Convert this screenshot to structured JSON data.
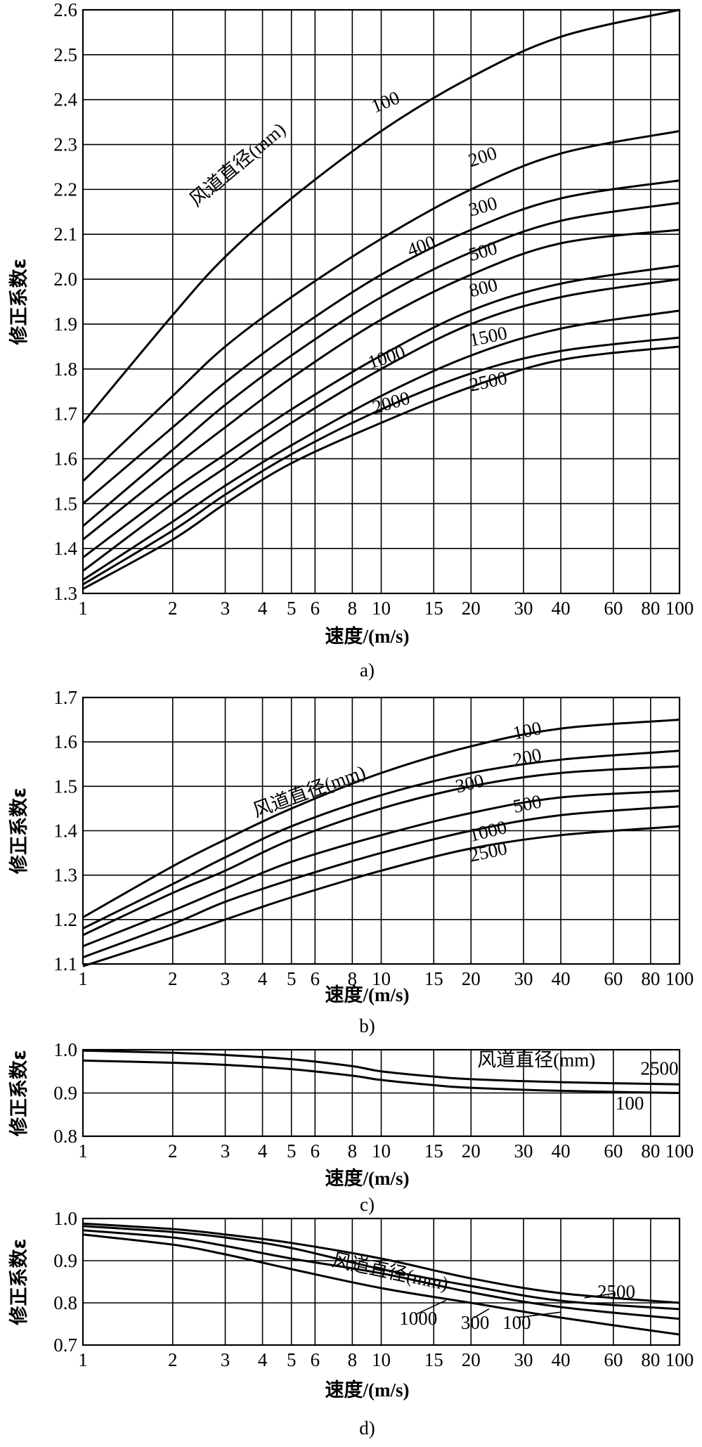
{
  "chart_data": [
    {
      "id": "a",
      "type": "line",
      "caption": "a)",
      "xlabel": "速度/(m/s)",
      "ylabel": "修正系数ε",
      "x_scale": "log",
      "xlim": [
        1,
        100
      ],
      "ylim": [
        1.3,
        2.6
      ],
      "x_ticks": [
        1,
        2,
        3,
        4,
        5,
        6,
        8,
        10,
        15,
        20,
        30,
        40,
        60,
        80,
        100
      ],
      "x_tick_labels": [
        "1",
        "2",
        "3",
        "4",
        "5",
        "6",
        "8",
        "10",
        "15",
        "20",
        "30",
        "40",
        "60",
        "80",
        "100"
      ],
      "y_ticks": [
        1.3,
        1.4,
        1.5,
        1.6,
        1.7,
        1.8,
        1.9,
        2.0,
        2.1,
        2.2,
        2.3,
        2.4,
        2.5,
        2.6
      ],
      "y_tick_labels": [
        "1.3",
        "1.4",
        "1.5",
        "1.6",
        "1.7",
        "1.8",
        "1.9",
        "2.0",
        "2.1",
        "2.2",
        "2.3",
        "2.4",
        "2.5",
        "2.6"
      ],
      "legend_title": "风道直径(mm)",
      "grid": true,
      "series": [
        {
          "name": "100",
          "x": [
            1,
            2,
            3,
            5,
            10,
            20,
            40,
            100
          ],
          "y": [
            1.68,
            1.92,
            2.05,
            2.18,
            2.33,
            2.45,
            2.54,
            2.6
          ]
        },
        {
          "name": "200",
          "x": [
            1,
            2,
            3,
            5,
            10,
            20,
            40,
            100
          ],
          "y": [
            1.55,
            1.74,
            1.85,
            1.96,
            2.09,
            2.2,
            2.28,
            2.33
          ]
        },
        {
          "name": "300",
          "x": [
            1,
            2,
            3,
            5,
            10,
            20,
            40,
            100
          ],
          "y": [
            1.5,
            1.67,
            1.77,
            1.88,
            2.01,
            2.11,
            2.18,
            2.22
          ]
        },
        {
          "name": "400",
          "x": [
            1,
            2,
            3,
            5,
            10,
            20,
            40,
            100
          ],
          "y": [
            1.45,
            1.62,
            1.72,
            1.83,
            1.96,
            2.06,
            2.13,
            2.17
          ]
        },
        {
          "name": "500",
          "x": [
            1,
            2,
            3,
            5,
            10,
            20,
            40,
            100
          ],
          "y": [
            1.42,
            1.58,
            1.67,
            1.78,
            1.91,
            2.01,
            2.08,
            2.11
          ]
        },
        {
          "name": "800",
          "x": [
            1,
            2,
            3,
            5,
            10,
            20,
            40,
            100
          ],
          "y": [
            1.38,
            1.53,
            1.61,
            1.71,
            1.83,
            1.93,
            1.99,
            2.03
          ]
        },
        {
          "name": "1000",
          "x": [
            1,
            2,
            3,
            5,
            10,
            20,
            40,
            100
          ],
          "y": [
            1.35,
            1.5,
            1.58,
            1.68,
            1.8,
            1.9,
            1.96,
            2.0
          ]
        },
        {
          "name": "1500",
          "x": [
            1,
            2,
            3,
            5,
            10,
            20,
            40,
            100
          ],
          "y": [
            1.33,
            1.46,
            1.54,
            1.63,
            1.74,
            1.83,
            1.89,
            1.93
          ]
        },
        {
          "name": "2000",
          "x": [
            1,
            2,
            3,
            5,
            10,
            20,
            40,
            100
          ],
          "y": [
            1.32,
            1.44,
            1.52,
            1.61,
            1.71,
            1.79,
            1.84,
            1.87
          ]
        },
        {
          "name": "2500",
          "x": [
            1,
            2,
            3,
            5,
            10,
            20,
            40,
            100
          ],
          "y": [
            1.31,
            1.42,
            1.5,
            1.59,
            1.68,
            1.76,
            1.82,
            1.85
          ]
        }
      ],
      "curve_labels": [
        {
          "text": "100",
          "x": 9.5,
          "y": 2.37,
          "angle": -22
        },
        {
          "text": "200",
          "x": 20,
          "y": 2.25,
          "angle": -18
        },
        {
          "text": "300",
          "x": 20,
          "y": 2.14,
          "angle": -16
        },
        {
          "text": "400",
          "x": 12.5,
          "y": 2.05,
          "angle": -20
        },
        {
          "text": "500",
          "x": 20,
          "y": 2.04,
          "angle": -16
        },
        {
          "text": "800",
          "x": 20,
          "y": 1.96,
          "angle": -14
        },
        {
          "text": "1000",
          "x": 9.2,
          "y": 1.8,
          "angle": -18
        },
        {
          "text": "1500",
          "x": 20,
          "y": 1.85,
          "angle": -12
        },
        {
          "text": "2000",
          "x": 9.5,
          "y": 1.7,
          "angle": -16
        },
        {
          "text": "2500",
          "x": 20,
          "y": 1.75,
          "angle": -12
        }
      ],
      "legend_pos": {
        "x": 2.4,
        "y": 2.16,
        "angle": -40
      }
    },
    {
      "id": "b",
      "type": "line",
      "caption": "b)",
      "xlabel": "速度/(m/s)",
      "ylabel": "修正系数ε",
      "x_scale": "log",
      "xlim": [
        1,
        100
      ],
      "ylim": [
        1.1,
        1.7
      ],
      "x_ticks": [
        1,
        2,
        3,
        4,
        5,
        6,
        8,
        10,
        15,
        20,
        30,
        40,
        60,
        80,
        100
      ],
      "x_tick_labels": [
        "1",
        "2",
        "3",
        "4",
        "5",
        "6",
        "8",
        "10",
        "15",
        "20",
        "30",
        "40",
        "60",
        "80",
        "100"
      ],
      "y_ticks": [
        1.1,
        1.2,
        1.3,
        1.4,
        1.5,
        1.6,
        1.7
      ],
      "y_tick_labels": [
        "1.1",
        "1.2",
        "1.3",
        "1.4",
        "1.5",
        "1.6",
        "1.7"
      ],
      "legend_title": "风道直径(mm)",
      "grid": true,
      "series": [
        {
          "name": "100",
          "x": [
            1,
            2,
            3,
            5,
            10,
            20,
            40,
            100
          ],
          "y": [
            1.205,
            1.32,
            1.38,
            1.45,
            1.53,
            1.59,
            1.63,
            1.65
          ]
        },
        {
          "name": "200",
          "x": [
            1,
            2,
            3,
            5,
            10,
            20,
            40,
            100
          ],
          "y": [
            1.18,
            1.28,
            1.34,
            1.41,
            1.48,
            1.53,
            1.56,
            1.58
          ]
        },
        {
          "name": "300",
          "x": [
            1,
            2,
            3,
            5,
            10,
            20,
            40,
            100
          ],
          "y": [
            1.165,
            1.26,
            1.31,
            1.38,
            1.45,
            1.5,
            1.53,
            1.545
          ]
        },
        {
          "name": "500",
          "x": [
            1,
            2,
            3,
            5,
            10,
            20,
            40,
            100
          ],
          "y": [
            1.14,
            1.22,
            1.27,
            1.33,
            1.39,
            1.44,
            1.475,
            1.49
          ]
        },
        {
          "name": "1000",
          "x": [
            1,
            2,
            3,
            5,
            10,
            20,
            40,
            100
          ],
          "y": [
            1.115,
            1.19,
            1.24,
            1.29,
            1.35,
            1.4,
            1.435,
            1.455
          ]
        },
        {
          "name": "2500",
          "x": [
            1,
            2,
            3,
            5,
            10,
            20,
            40,
            100
          ],
          "y": [
            1.095,
            1.16,
            1.2,
            1.25,
            1.31,
            1.36,
            1.39,
            1.41
          ]
        }
      ],
      "curve_labels": [
        {
          "text": "100",
          "x": 28,
          "y": 1.605,
          "angle": -12
        },
        {
          "text": "200",
          "x": 28,
          "y": 1.545,
          "angle": -12
        },
        {
          "text": "300",
          "x": 18,
          "y": 1.485,
          "angle": -14
        },
        {
          "text": "500",
          "x": 28,
          "y": 1.44,
          "angle": -12
        },
        {
          "text": "1000",
          "x": 20,
          "y": 1.375,
          "angle": -14
        },
        {
          "text": "2500",
          "x": 20,
          "y": 1.33,
          "angle": -12
        }
      ],
      "legend_pos": {
        "x": 3.8,
        "y": 1.43,
        "angle": -20
      }
    },
    {
      "id": "c",
      "type": "line",
      "caption": "c)",
      "xlabel": "速度/(m/s)",
      "ylabel": "修正系数ε",
      "x_scale": "log",
      "xlim": [
        1,
        100
      ],
      "ylim": [
        0.8,
        1.0
      ],
      "x_ticks": [
        1,
        2,
        3,
        4,
        5,
        6,
        8,
        10,
        15,
        20,
        30,
        40,
        60,
        80,
        100
      ],
      "x_tick_labels": [
        "1",
        "2",
        "3",
        "4",
        "5",
        "6",
        "8",
        "10",
        "15",
        "20",
        "30",
        "40",
        "60",
        "80",
        "100"
      ],
      "y_ticks": [
        0.8,
        0.9,
        1.0
      ],
      "y_tick_labels": [
        "0.8",
        "0.9",
        "1.0"
      ],
      "legend_title": "风道直径(mm)",
      "grid": true,
      "series": [
        {
          "name": "2500",
          "x": [
            1,
            2,
            3,
            5,
            8,
            10,
            15,
            20,
            40,
            100
          ],
          "y": [
            0.998,
            0.993,
            0.988,
            0.978,
            0.962,
            0.95,
            0.938,
            0.932,
            0.925,
            0.92
          ]
        },
        {
          "name": "100",
          "x": [
            1,
            2,
            3,
            5,
            8,
            10,
            15,
            20,
            40,
            100
          ],
          "y": [
            0.975,
            0.97,
            0.965,
            0.955,
            0.94,
            0.93,
            0.918,
            0.912,
            0.905,
            0.9
          ]
        }
      ],
      "curve_labels": [
        {
          "text": "2500",
          "x": 74,
          "y": 0.942,
          "angle": 0
        },
        {
          "text": "100",
          "x": 61,
          "y": 0.862,
          "angle": 0
        }
      ],
      "legend_pos": {
        "x": 21,
        "y": 0.962,
        "angle": 0
      }
    },
    {
      "id": "d",
      "type": "line",
      "caption": "d)",
      "xlabel": "速度/(m/s)",
      "ylabel": "修正系数ε",
      "x_scale": "log",
      "xlim": [
        1,
        100
      ],
      "ylim": [
        0.7,
        1.0
      ],
      "x_ticks": [
        1,
        2,
        3,
        4,
        5,
        6,
        8,
        10,
        15,
        20,
        30,
        40,
        60,
        80,
        100
      ],
      "x_tick_labels": [
        "1",
        "2",
        "3",
        "4",
        "5",
        "6",
        "8",
        "10",
        "15",
        "20",
        "30",
        "40",
        "60",
        "80",
        "100"
      ],
      "y_ticks": [
        0.7,
        0.8,
        0.9,
        1.0
      ],
      "y_tick_labels": [
        "0.7",
        "0.8",
        "0.9",
        "1.0"
      ],
      "legend_title": "风道直径(mm)",
      "grid": true,
      "series": [
        {
          "name": "2500",
          "x": [
            1,
            2,
            3,
            5,
            10,
            20,
            40,
            100
          ],
          "y": [
            0.988,
            0.975,
            0.962,
            0.942,
            0.905,
            0.858,
            0.823,
            0.8
          ]
        },
        {
          "name": "1000",
          "x": [
            1,
            2,
            3,
            5,
            10,
            20,
            40,
            100
          ],
          "y": [
            0.982,
            0.968,
            0.955,
            0.93,
            0.88,
            0.84,
            0.805,
            0.785
          ]
        },
        {
          "name": "300",
          "x": [
            1,
            2,
            3,
            5,
            10,
            20,
            40,
            100
          ],
          "y": [
            0.972,
            0.955,
            0.935,
            0.905,
            0.87,
            0.825,
            0.79,
            0.762
          ]
        },
        {
          "name": "100",
          "x": [
            1,
            2,
            3,
            5,
            10,
            20,
            40,
            100
          ],
          "y": [
            0.962,
            0.938,
            0.915,
            0.88,
            0.835,
            0.8,
            0.765,
            0.725
          ]
        }
      ],
      "curve_labels": [
        {
          "text": "2500",
          "x": 53,
          "y": 0.812,
          "angle": 0
        },
        {
          "text": "1000",
          "x": 11.5,
          "y": 0.748,
          "angle": 0
        },
        {
          "text": "300",
          "x": 18.5,
          "y": 0.738,
          "angle": 0
        },
        {
          "text": "100",
          "x": 25.5,
          "y": 0.738,
          "angle": 0
        }
      ],
      "legend_pos": {
        "x": 6.8,
        "y": 0.888,
        "angle": 12
      }
    }
  ]
}
